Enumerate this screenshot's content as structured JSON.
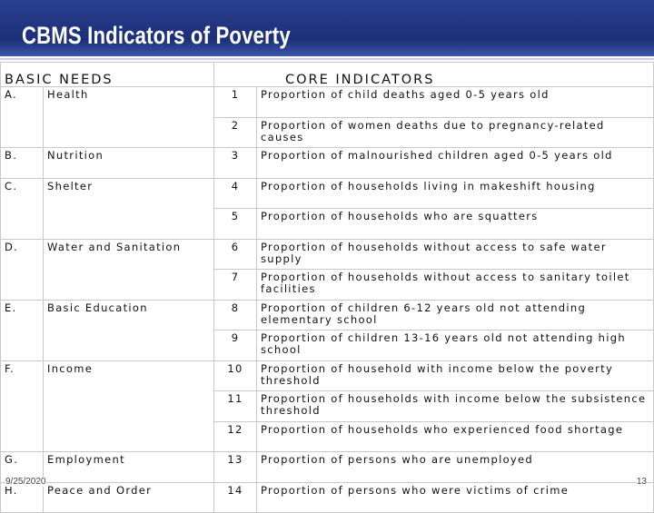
{
  "header": {
    "title": "CBMS Indicators of Poverty"
  },
  "table": {
    "headers": [
      "BASIC NEEDS",
      "CORE INDICATORS"
    ],
    "groups": [
      {
        "letter": "A.",
        "need": "Health",
        "items": [
          {
            "number": "1",
            "indicator": "Proportion of child deaths aged 0-5 years old"
          },
          {
            "number": "2",
            "indicator": "Proportion of women deaths due to pregnancy-related causes"
          }
        ]
      },
      {
        "letter": "B.",
        "need": "Nutrition",
        "items": [
          {
            "number": "3",
            "indicator": "Proportion of malnourished children aged 0-5 years old"
          }
        ]
      },
      {
        "letter": "C.",
        "need": "Shelter",
        "items": [
          {
            "number": "4",
            "indicator": "Proportion of households living in makeshift housing"
          },
          {
            "number": "5",
            "indicator": "Proportion of households who are squatters"
          }
        ]
      },
      {
        "letter": "D.",
        "need": "Water and Sanitation",
        "items": [
          {
            "number": "6",
            "indicator": "Proportion of households without access to safe water supply"
          },
          {
            "number": "7",
            "indicator": "Proportion of households without access to sanitary toilet facilities"
          }
        ]
      },
      {
        "letter": "E.",
        "need": "Basic Education",
        "items": [
          {
            "number": "8",
            "indicator": "Proportion of children 6-12 years old not attending elementary school"
          },
          {
            "number": "9",
            "indicator": "Proportion of children 13-16 years old not attending high school"
          }
        ]
      },
      {
        "letter": "F.",
        "need": "Income",
        "items": [
          {
            "number": "10",
            "indicator": "Proportion of household with income below the poverty threshold"
          },
          {
            "number": "11",
            "indicator": "Proportion of households with income below the subsistence threshold"
          },
          {
            "number": "12",
            "indicator": "Proportion of households who experienced food shortage"
          }
        ]
      },
      {
        "letter": "G.",
        "need": "Employment",
        "items": [
          {
            "number": "13",
            "indicator": "Proportion of persons who are unemployed"
          }
        ]
      },
      {
        "letter": "H.",
        "need": "Peace and Order",
        "items": [
          {
            "number": "14",
            "indicator": "Proportion of persons who were victims of crime"
          }
        ]
      }
    ]
  },
  "footer": {
    "date": "9/25/2020",
    "page": "13"
  }
}
